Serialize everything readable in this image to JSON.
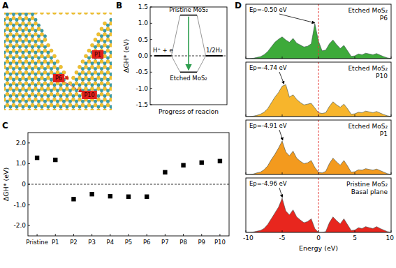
{
  "panel_labels": [
    "A",
    "B",
    "C",
    "D"
  ],
  "diagram": {
    "sites": [
      "P1",
      "P6",
      "P10"
    ]
  },
  "chart_data": [
    {
      "type": "energy_diagram",
      "ylabel": "ΔGH* (eV)",
      "xlabel": "Progress of reacion",
      "categories": [
        "H⁺ + e",
        null,
        "1/2H₂"
      ],
      "series": [
        {
          "name": "Pristine MoS₂",
          "color": "#000000",
          "values": [
            0,
            1.25,
            0
          ]
        },
        {
          "name": "Etched MoS₂",
          "color": "#000000",
          "values": [
            0,
            -0.5,
            0
          ]
        }
      ],
      "ylim": [
        -1.5,
        1.5
      ],
      "yticks": [
        -1.5,
        {
          "value": -1,
          "label": "-1.0"
        },
        -0.5,
        {
          "value": 0,
          "label": "0.0"
        },
        0.5,
        {
          "value": 1,
          "label": "1.0"
        },
        1.5
      ],
      "reference_lines": [
        0
      ]
    },
    {
      "type": "scatter",
      "ylabel": "ΔGH* (eV)",
      "categories": [
        "Pristine",
        "P1",
        "P2",
        "P3",
        "P4",
        "P5",
        "P6",
        "P7",
        "P8",
        "P9",
        "P10"
      ],
      "values": [
        1.28,
        1.18,
        -0.72,
        -0.48,
        -0.58,
        -0.6,
        -0.6,
        0.58,
        0.92,
        1.05,
        1.12
      ],
      "color": "#000000",
      "marker": "square",
      "ylim": [
        -2.5,
        2.5
      ],
      "yticks": [
        {
          "value": -2,
          "label": "-2.0"
        },
        {
          "value": -1,
          "label": "-1.0"
        },
        0,
        {
          "value": 1,
          "label": "1.0"
        },
        {
          "value": 2,
          "label": "2.0"
        }
      ],
      "reference_lines": [
        0
      ]
    },
    {
      "type": "area",
      "title": "Etched MoS₂",
      "subtitle": "P6",
      "x": [
        -10,
        -9.5,
        -9,
        -8.5,
        -8,
        -7.5,
        -7,
        -6.5,
        -6,
        -5.5,
        -5,
        -4.5,
        -4,
        -3.5,
        -3,
        -2.5,
        -2,
        -1.5,
        -1,
        -0.5,
        0,
        0.5,
        1,
        1.5,
        2,
        2.5,
        3,
        3.5,
        4,
        4.5,
        5,
        5.5,
        6,
        6.5,
        7,
        7.5,
        8,
        8.5,
        9,
        9.5,
        10
      ],
      "values": [
        0,
        0,
        0.1,
        0.3,
        0.5,
        1.0,
        1.8,
        3.0,
        4.2,
        5.0,
        5.6,
        4.8,
        4.2,
        5.2,
        4.0,
        3.5,
        3.0,
        3.2,
        3.8,
        9.0,
        4.5,
        2.0,
        2.2,
        3.8,
        4.8,
        3.6,
        2.6,
        3.4,
        2.0,
        0.6,
        0.7,
        1.2,
        1.0,
        1.4,
        1.2,
        1.0,
        1.3,
        0.9,
        0.5,
        0.2,
        0
      ],
      "color": "#3daa3a",
      "xlim": [
        -10,
        10
      ],
      "xticks": [
        -10,
        -5,
        0,
        5,
        10
      ],
      "ylim": [
        0,
        14
      ],
      "tick_labels": false,
      "reference_lines": [
        0
      ],
      "annotations": [
        {
          "text": "Ep=-0.50 eV",
          "x": -0.5
        }
      ]
    },
    {
      "type": "area",
      "title": "Etched MoS₂",
      "subtitle": "P10",
      "x": [
        -10,
        -9.5,
        -9,
        -8.5,
        -8,
        -7.5,
        -7,
        -6.5,
        -6,
        -5.5,
        -5,
        -4.5,
        -4,
        -3.5,
        -3,
        -2.5,
        -2,
        -1.5,
        -1,
        -0.5,
        0,
        0.5,
        1,
        1.5,
        2,
        2.5,
        3,
        3.5,
        4,
        4.5,
        5,
        5.5,
        6,
        6.5,
        7,
        7.5,
        8,
        8.5,
        9,
        9.5,
        10
      ],
      "values": [
        0,
        0,
        0.1,
        0.3,
        0.6,
        1.1,
        2.0,
        3.5,
        5.0,
        6.2,
        7.8,
        8.2,
        5.0,
        5.6,
        4.4,
        3.6,
        3.0,
        3.2,
        3.4,
        2.2,
        1.0,
        0.8,
        1.0,
        2.6,
        3.8,
        3.0,
        2.4,
        3.2,
        2.0,
        0.6,
        0.7,
        1.1,
        1.0,
        1.4,
        1.2,
        1.0,
        1.3,
        0.9,
        0.5,
        0.2,
        0
      ],
      "color": "#f7b52c",
      "xlim": [
        -10,
        10
      ],
      "xticks": [
        -10,
        -5,
        0,
        5,
        10
      ],
      "ylim": [
        0,
        14
      ],
      "tick_labels": false,
      "reference_lines": [
        0
      ],
      "annotations": [
        {
          "text": "Ep=-4.74 eV",
          "x": -4.74
        }
      ]
    },
    {
      "type": "area",
      "title": "Etched MoS₂",
      "subtitle": "P1",
      "x": [
        -10,
        -9.5,
        -9,
        -8.5,
        -8,
        -7.5,
        -7,
        -6.5,
        -6,
        -5.5,
        -5,
        -4.5,
        -4,
        -3.5,
        -3,
        -2.5,
        -2,
        -1.5,
        -1,
        -0.5,
        0,
        0.5,
        1,
        1.5,
        2,
        2.5,
        3,
        3.5,
        4,
        4.5,
        5,
        5.5,
        6,
        6.5,
        7,
        7.5,
        8,
        8.5,
        9,
        9.5,
        10
      ],
      "values": [
        0,
        0,
        0.1,
        0.4,
        0.6,
        1.2,
        2.2,
        3.8,
        5.2,
        6.8,
        8.6,
        5.8,
        4.8,
        6.0,
        4.2,
        3.4,
        2.8,
        3.0,
        3.6,
        1.8,
        0.6,
        0.4,
        0.8,
        2.8,
        4.2,
        3.2,
        2.4,
        3.6,
        2.2,
        0.6,
        0.7,
        1.2,
        1.1,
        1.5,
        1.3,
        1.1,
        1.4,
        1.0,
        0.6,
        0.2,
        0
      ],
      "color": "#f39a1e",
      "xlim": [
        -10,
        10
      ],
      "xticks": [
        -10,
        -5,
        0,
        5,
        10
      ],
      "ylim": [
        0,
        14
      ],
      "tick_labels": false,
      "reference_lines": [
        0
      ],
      "annotations": [
        {
          "text": "Ep=-4.91 eV",
          "x": -4.91
        }
      ]
    },
    {
      "type": "area",
      "title": "Pristine MoS₂",
      "subtitle": "Basal plane",
      "xlabel": "Energy (eV)",
      "x": [
        -10,
        -9.5,
        -9,
        -8.5,
        -8,
        -7.5,
        -7,
        -6.5,
        -6,
        -5.5,
        -5,
        -4.5,
        -4,
        -3.5,
        -3,
        -2.5,
        -2,
        -1.5,
        -1,
        -0.5,
        0,
        0.5,
        1,
        1.5,
        2,
        2.5,
        3,
        3.5,
        4,
        4.5,
        5,
        5.5,
        6,
        6.5,
        7,
        7.5,
        8,
        8.5,
        9,
        9.5,
        10
      ],
      "values": [
        0,
        0,
        0.1,
        0.3,
        0.5,
        1.0,
        2.0,
        3.5,
        5.0,
        6.5,
        8.8,
        5.5,
        4.5,
        5.8,
        4.0,
        3.2,
        2.5,
        2.8,
        3.5,
        1.0,
        0,
        0,
        0.2,
        2.5,
        4.0,
        3.0,
        2.2,
        3.5,
        2.0,
        0.5,
        0.6,
        1.2,
        1.0,
        1.5,
        1.2,
        1.0,
        1.5,
        1.0,
        0.6,
        0.2,
        0
      ],
      "color": "#e8261e",
      "xlim": [
        -10,
        10
      ],
      "xticks": [
        -10,
        -5,
        0,
        5,
        10
      ],
      "ylim": [
        0,
        14
      ],
      "tick_labels": "x",
      "reference_lines": [
        0
      ],
      "annotations": [
        {
          "text": "Ep=-4.96 eV",
          "x": -4.96
        }
      ]
    }
  ]
}
